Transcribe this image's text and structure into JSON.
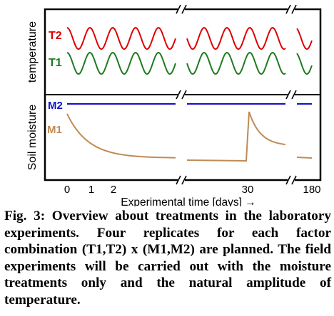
{
  "colors": {
    "T2": "#dd0000",
    "T1": "#1f7a1f",
    "M2": "#1010cc",
    "M1": "#c08a55",
    "frame": "#000000"
  },
  "chart_data": {
    "type": "line",
    "title": "",
    "xlabel": "Experimental time  [days] →",
    "x_ticks": [
      "0",
      "1",
      "2",
      "30",
      "180"
    ],
    "x_axis_breaks": 2,
    "panels": [
      {
        "name": "temperature",
        "ylabel": "temperature",
        "series": [
          {
            "name": "T2",
            "label": "T2",
            "shape": "sinusoid",
            "period_days": 1,
            "description_level": "high"
          },
          {
            "name": "T1",
            "label": "T1",
            "shape": "sinusoid",
            "period_days": 1,
            "description_level": "low"
          }
        ]
      },
      {
        "name": "soil-moisture",
        "ylabel": "Soil moisture",
        "series": [
          {
            "name": "M2",
            "label": "M2",
            "shape": "constant",
            "relative_level": 1.0
          },
          {
            "name": "M1",
            "label": "M1",
            "shape": "exponential-decay-with-rewetting",
            "relative_start": 0.9,
            "relative_end_before_rewet": 0.1,
            "rewet_day": 30
          }
        ]
      }
    ]
  },
  "caption": {
    "text": "Fig. 3: Overview about treatments in the laboratory experiments. Four replicates for each factor combination (T1,T2) x (M1,M2) are planned. The field experiments will be carried out with the moisture treatments only and the natural amplitude of temperature."
  }
}
